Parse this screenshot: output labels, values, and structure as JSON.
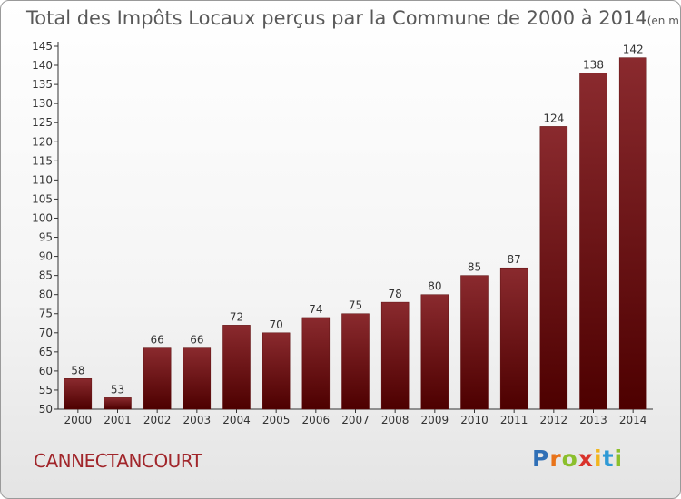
{
  "chart_data": {
    "type": "bar",
    "title": "Total des Impôts Locaux perçus par la Commune de 2000 à 2014",
    "unit": "(en milliers d'€)",
    "categories": [
      "2000",
      "2001",
      "2002",
      "2003",
      "2004",
      "2005",
      "2006",
      "2007",
      "2008",
      "2009",
      "2010",
      "2011",
      "2012",
      "2013",
      "2014"
    ],
    "values": [
      58,
      53,
      66,
      66,
      72,
      70,
      74,
      75,
      78,
      80,
      85,
      87,
      124,
      138,
      142
    ],
    "ylim": [
      50,
      145
    ],
    "yticks": [
      50,
      55,
      60,
      65,
      70,
      75,
      80,
      85,
      90,
      95,
      100,
      105,
      110,
      115,
      120,
      125,
      130,
      135,
      140,
      145
    ],
    "grid": false,
    "colors": {
      "bar_top": "#8a2a2e",
      "bar_bottom": "#4d0000",
      "bar_edge": "#5a0a0a",
      "axis": "#333333"
    }
  },
  "commune": "CANNECTANCOURT",
  "brand": {
    "letters": [
      "P",
      "r",
      "o",
      "x",
      "i",
      "t",
      "i"
    ],
    "colors": [
      "#2f6fb6",
      "#e8731a",
      "#8bbf2c",
      "#d9322b",
      "#f2b51d",
      "#2f9ad6",
      "#8bbf2c"
    ]
  }
}
